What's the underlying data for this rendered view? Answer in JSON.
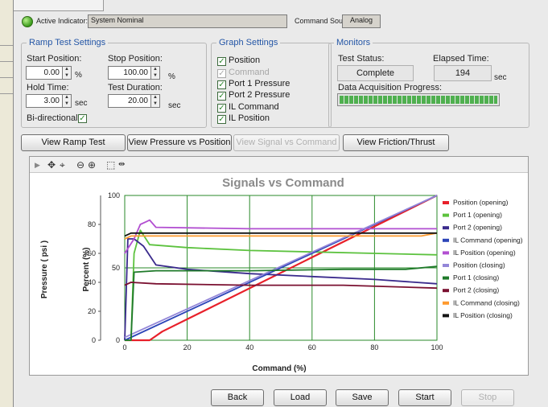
{
  "header": {
    "active_indicator_label": "Active Indicator:",
    "active_indicator_value": "System Nominal",
    "command_source_label": "Command Source:",
    "command_source_value": "Analog"
  },
  "ramp_test": {
    "legend": "Ramp Test Settings",
    "start_label": "Start Position:",
    "start_value": "0.00",
    "start_unit": "%",
    "stop_label": "Stop Position:",
    "stop_value": "100.00",
    "stop_unit": "%",
    "hold_label": "Hold Time:",
    "hold_value": "3.00",
    "hold_unit": "sec",
    "duration_label": "Test Duration:",
    "duration_value": "20.00",
    "duration_unit": "sec",
    "bidirectional_label": "Bi-directional",
    "bidirectional_checked": true
  },
  "graph_settings": {
    "legend": "Graph Settings",
    "items": [
      {
        "label": "Position",
        "checked": true,
        "enabled": true
      },
      {
        "label": "Command",
        "checked": true,
        "enabled": false
      },
      {
        "label": "Port 1 Pressure",
        "checked": true,
        "enabled": true
      },
      {
        "label": "Port 2 Pressure",
        "checked": true,
        "enabled": true
      },
      {
        "label": "IL Command",
        "checked": true,
        "enabled": true
      },
      {
        "label": "IL Position",
        "checked": true,
        "enabled": true
      }
    ]
  },
  "monitors": {
    "legend": "Monitors",
    "status_label": "Test Status:",
    "status_value": "Complete",
    "elapsed_label": "Elapsed Time:",
    "elapsed_value": "194",
    "elapsed_unit": "sec",
    "progress_label": "Data Acquisition Progress:",
    "progress_fraction": 1.0
  },
  "view_tabs": [
    {
      "label": "View Ramp Test",
      "enabled": true
    },
    {
      "label": "View Pressure vs Position",
      "enabled": true
    },
    {
      "label": "View Signal vs Command",
      "enabled": false
    },
    {
      "label": "View Friction/Thrust",
      "enabled": true
    }
  ],
  "toolbar_icons": [
    "play-arrow-icon",
    "pan-icon",
    "zoom-select-icon",
    "zoom-out-icon",
    "zoom-in-icon",
    "box-select-icon",
    "cursor-icon"
  ],
  "actions": [
    {
      "label": "Back",
      "enabled": true
    },
    {
      "label": "Load",
      "enabled": true
    },
    {
      "label": "Save",
      "enabled": true
    },
    {
      "label": "Start",
      "enabled": true
    },
    {
      "label": "Stop",
      "enabled": false
    }
  ],
  "chart_data": {
    "type": "line",
    "title": "Signals vs Command",
    "xlabel": "Command (%)",
    "ylabel_left": "Pressure ( psi )",
    "ylabel_right": "Percent (%)",
    "xlim": [
      0,
      100
    ],
    "ylim_percent": [
      0,
      100
    ],
    "ylim_pressure": [
      0,
      100
    ],
    "x_ticks": [
      0,
      20,
      40,
      60,
      80,
      100
    ],
    "percent_ticks": [
      0,
      50,
      100
    ],
    "pressure_ticks": [
      0,
      20,
      40,
      60,
      80
    ],
    "grid": true,
    "legend_position": "right",
    "series": [
      {
        "name": "Position (opening)",
        "color": "#e8202a",
        "x": [
          0,
          8,
          10,
          12,
          100
        ],
        "y": [
          0,
          0,
          3,
          6,
          100
        ]
      },
      {
        "name": "Port 1 (opening)",
        "color": "#5cc23e",
        "x": [
          0,
          2,
          3,
          5,
          8,
          20,
          40,
          60,
          80,
          100
        ],
        "y": [
          0,
          0,
          60,
          76,
          66,
          64,
          62,
          61,
          60,
          59
        ]
      },
      {
        "name": "Port 2 (opening)",
        "color": "#3a2a8c",
        "x": [
          0,
          1,
          3,
          6,
          10,
          20,
          40,
          60,
          80,
          100
        ],
        "y": [
          0,
          70,
          70,
          65,
          52,
          49,
          46,
          44,
          42,
          39
        ]
      },
      {
        "name": "IL Command (opening)",
        "color": "#2c44b8",
        "x": [
          0,
          100
        ],
        "y": [
          0,
          100
        ]
      },
      {
        "name": "IL Position (opening)",
        "color": "#b24fd1",
        "x": [
          0,
          3,
          5,
          7,
          8,
          10,
          40,
          70,
          100
        ],
        "y": [
          60,
          70,
          80,
          82,
          83,
          78,
          77,
          77,
          77
        ]
      },
      {
        "name": "Position (closing)",
        "color": "#9386d8",
        "x": [
          0,
          100
        ],
        "y": [
          2,
          100
        ]
      },
      {
        "name": "Port 1 (closing)",
        "color": "#1f7a2a",
        "x": [
          0,
          2,
          3,
          10,
          40,
          70,
          90,
          100
        ],
        "y": [
          0,
          0,
          47,
          48,
          48,
          49,
          49,
          51
        ]
      },
      {
        "name": "Port 2 (closing)",
        "color": "#7a1030",
        "x": [
          0,
          2,
          10,
          40,
          70,
          100
        ],
        "y": [
          38,
          40,
          39,
          38,
          38,
          36
        ]
      },
      {
        "name": "IL Command (closing)",
        "color": "#ff9a2e",
        "x": [
          0,
          2,
          40,
          70,
          95,
          100
        ],
        "y": [
          70,
          72,
          72,
          72,
          72,
          74
        ]
      },
      {
        "name": "IL Position (closing)",
        "color": "#141414",
        "x": [
          0,
          2,
          40,
          70,
          95,
          98,
          100
        ],
        "y": [
          72,
          74,
          74,
          74,
          74,
          74,
          74
        ]
      }
    ]
  }
}
